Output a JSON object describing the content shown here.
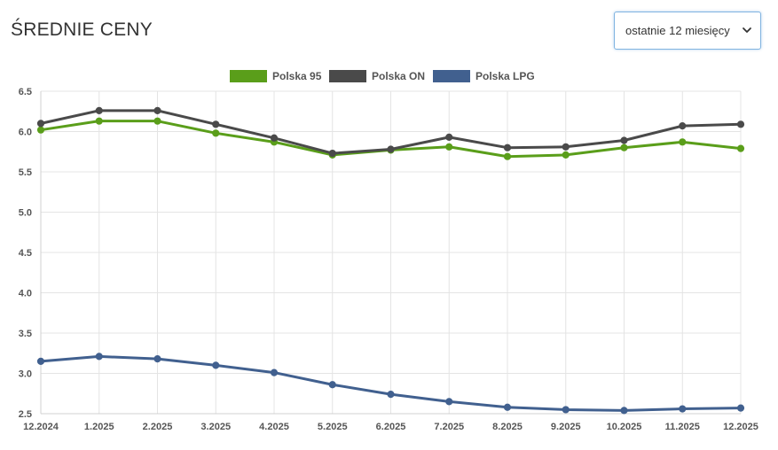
{
  "header": {
    "title": "ŚREDNIE CENY"
  },
  "period_select": {
    "value": "ostatnie 12 miesięcy",
    "icon": "chevron-down-icon"
  },
  "chart_data": {
    "type": "line",
    "x": [
      "12.2024",
      "1.2025",
      "2.2025",
      "3.2025",
      "4.2025",
      "5.2025",
      "6.2025",
      "7.2025",
      "8.2025",
      "9.2025",
      "10.2025",
      "11.2025",
      "12.2025"
    ],
    "series": [
      {
        "name": "Polska 95",
        "color": "#5a9e1a",
        "values": [
          6.02,
          6.13,
          6.13,
          5.98,
          5.87,
          5.71,
          5.77,
          5.81,
          5.69,
          5.71,
          5.8,
          5.87,
          5.79
        ]
      },
      {
        "name": "Polska ON",
        "color": "#4a4a4a",
        "values": [
          6.1,
          6.26,
          6.26,
          6.09,
          5.92,
          5.73,
          5.78,
          5.93,
          5.8,
          5.81,
          5.89,
          6.07,
          6.09
        ]
      },
      {
        "name": "Polska LPG",
        "color": "#41608f",
        "values": [
          3.15,
          3.21,
          3.18,
          3.1,
          3.01,
          2.86,
          2.74,
          2.65,
          2.58,
          2.55,
          2.54,
          2.56,
          2.57
        ]
      }
    ],
    "y_ticks": [
      "6.5",
      "6.0",
      "5.5",
      "5.0",
      "4.5",
      "4.0",
      "3.5",
      "3.0",
      "2.5"
    ],
    "ylim": [
      2.5,
      6.5
    ],
    "grid": true,
    "legend_position": "top-center"
  }
}
